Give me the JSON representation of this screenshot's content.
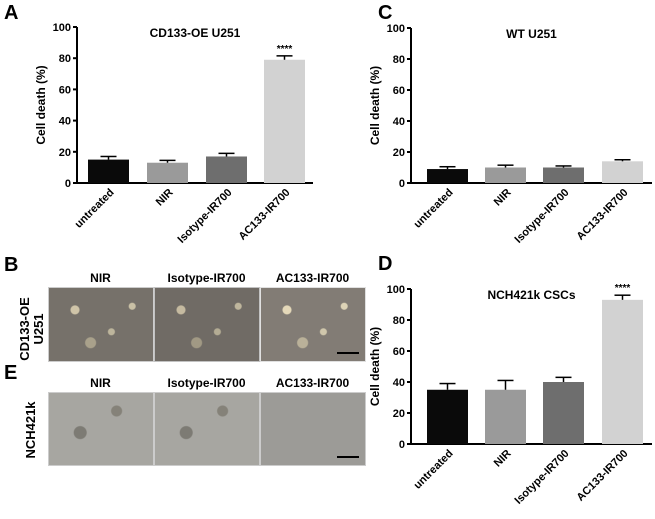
{
  "panels": {
    "A": "A",
    "B": "B",
    "C": "C",
    "D": "D",
    "E": "E"
  },
  "microscopy": {
    "columns": [
      "NIR",
      "Isotype-IR700",
      "AC133-IR700"
    ],
    "row_B_label_line1": "CD133-OE",
    "row_B_label_line2": "U251",
    "row_E_label": "NCH421k"
  },
  "chart_data": [
    {
      "type": "bar",
      "panel": "A",
      "title": "CD133-OE U251",
      "ylabel": "Cell death (%)",
      "xlabel": "",
      "ylim": [
        0,
        100
      ],
      "yticks": [
        "0",
        "20",
        "40",
        "60",
        "80",
        "100"
      ],
      "categories": [
        "untreated",
        "NIR",
        "Isotype-IR700",
        "AC133-IR700"
      ],
      "values": [
        15,
        13,
        17,
        79
      ],
      "errors": [
        2,
        1.5,
        2,
        2.5
      ],
      "colors": [
        "#0a0a0a",
        "#9a9a9a",
        "#6e6e6e",
        "#d2d2d2"
      ],
      "annotations": [
        "",
        "",
        "",
        "****"
      ]
    },
    {
      "type": "bar",
      "panel": "C",
      "title": "WT U251",
      "ylabel": "Cell death (%)",
      "xlabel": "",
      "ylim": [
        0,
        100
      ],
      "yticks": [
        "0",
        "20",
        "40",
        "60",
        "80",
        "100"
      ],
      "categories": [
        "untreated",
        "NIR",
        "Isotype-IR700",
        "AC133-IR700"
      ],
      "values": [
        9,
        10,
        10,
        14
      ],
      "errors": [
        1.5,
        1.5,
        1,
        1
      ],
      "colors": [
        "#0a0a0a",
        "#9a9a9a",
        "#6e6e6e",
        "#d2d2d2"
      ],
      "annotations": [
        "",
        "",
        "",
        ""
      ]
    },
    {
      "type": "bar",
      "panel": "D",
      "title": "NCH421k CSCs",
      "ylabel": "Cell death (%)",
      "xlabel": "",
      "ylim": [
        0,
        100
      ],
      "yticks": [
        "0",
        "20",
        "40",
        "60",
        "80",
        "100"
      ],
      "categories": [
        "untreated",
        "NIR",
        "Isotype-IR700",
        "AC133-IR700"
      ],
      "values": [
        35,
        35,
        40,
        93
      ],
      "errors": [
        4,
        6,
        3,
        3
      ],
      "colors": [
        "#0a0a0a",
        "#9a9a9a",
        "#6e6e6e",
        "#d2d2d2"
      ],
      "annotations": [
        "",
        "",
        "",
        "****"
      ]
    }
  ]
}
